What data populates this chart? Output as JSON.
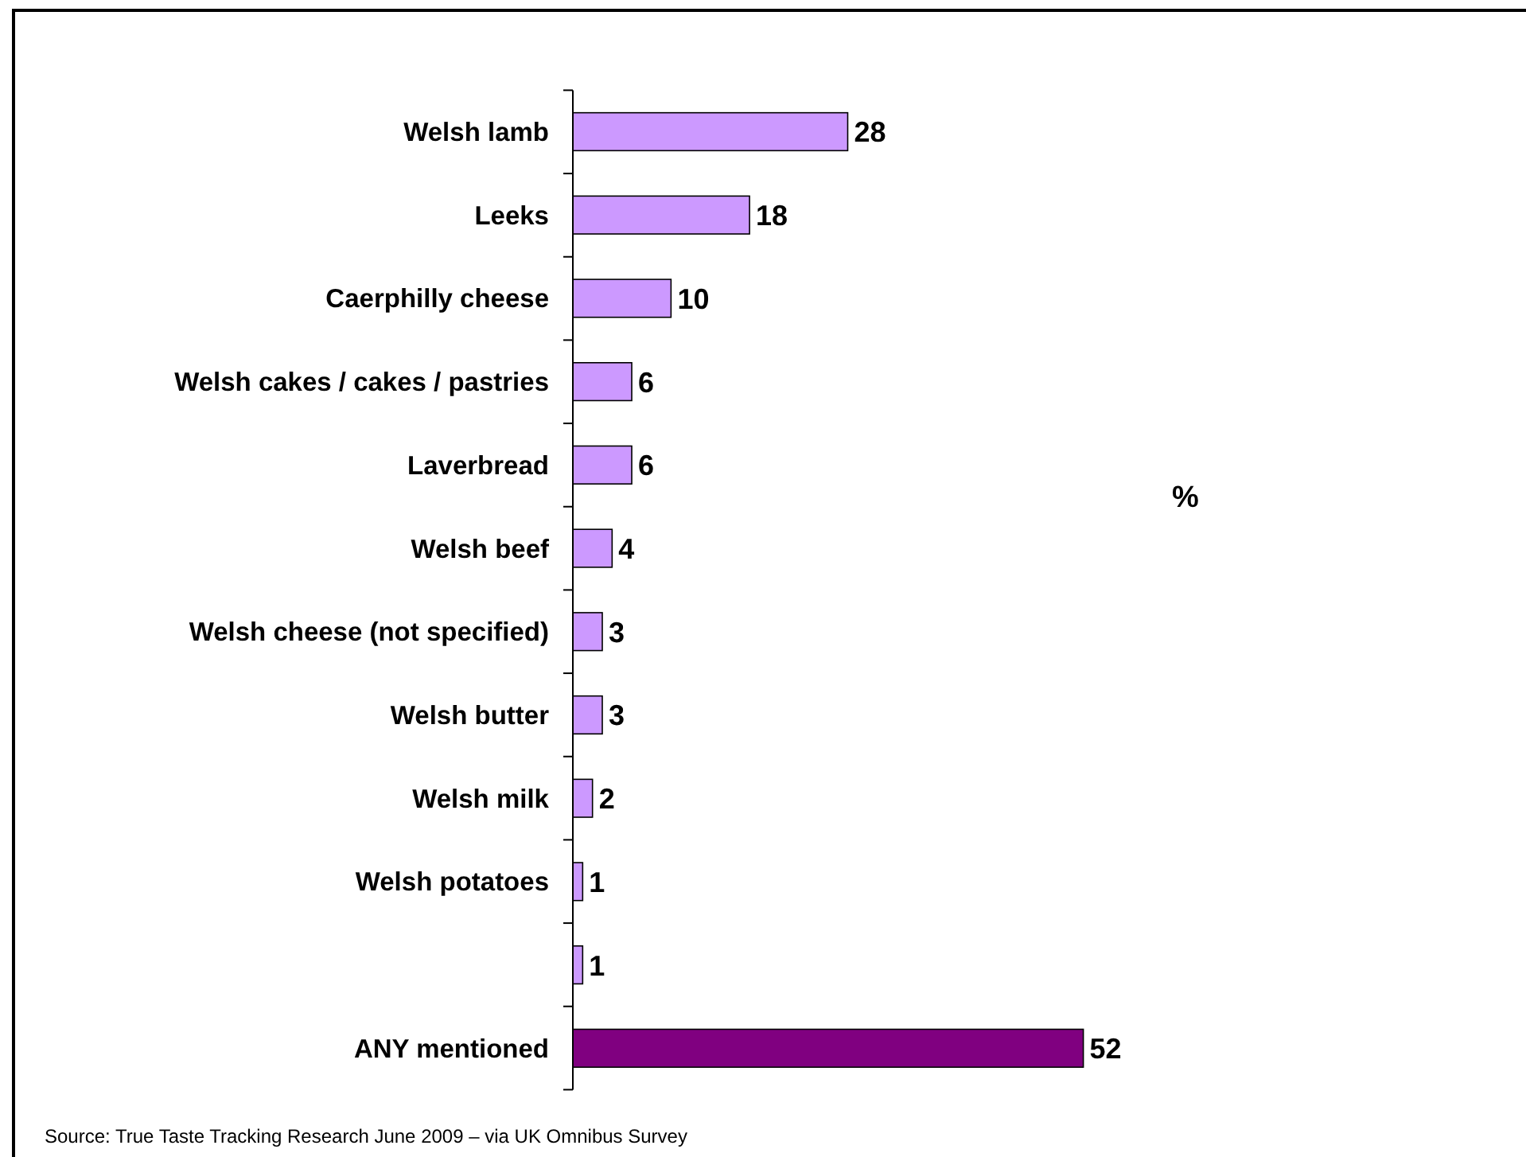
{
  "chart_data": {
    "type": "bar",
    "orientation": "horizontal",
    "xlabel": "%",
    "categories": [
      "Welsh lamb",
      "Leeks",
      "Caerphilly cheese",
      "Welsh cakes / cakes / pastries",
      "Laverbread",
      "Welsh beef",
      "Welsh cheese (not specified)",
      "Welsh butter",
      "Welsh milk",
      "Welsh potatoes",
      null,
      "ANY mentioned"
    ],
    "values": [
      28,
      18,
      10,
      6,
      6,
      4,
      3,
      3,
      2,
      1,
      1,
      52
    ],
    "colors": [
      "#cc99ff",
      "#cc99ff",
      "#cc99ff",
      "#cc99ff",
      "#cc99ff",
      "#cc99ff",
      "#cc99ff",
      "#cc99ff",
      "#cc99ff",
      "#cc99ff",
      "#cc99ff",
      "#800080"
    ],
    "data_labels": true,
    "annotations": [
      "Source: True Taste Tracking Research June 2009 – via UK Omnibus Survey"
    ]
  }
}
